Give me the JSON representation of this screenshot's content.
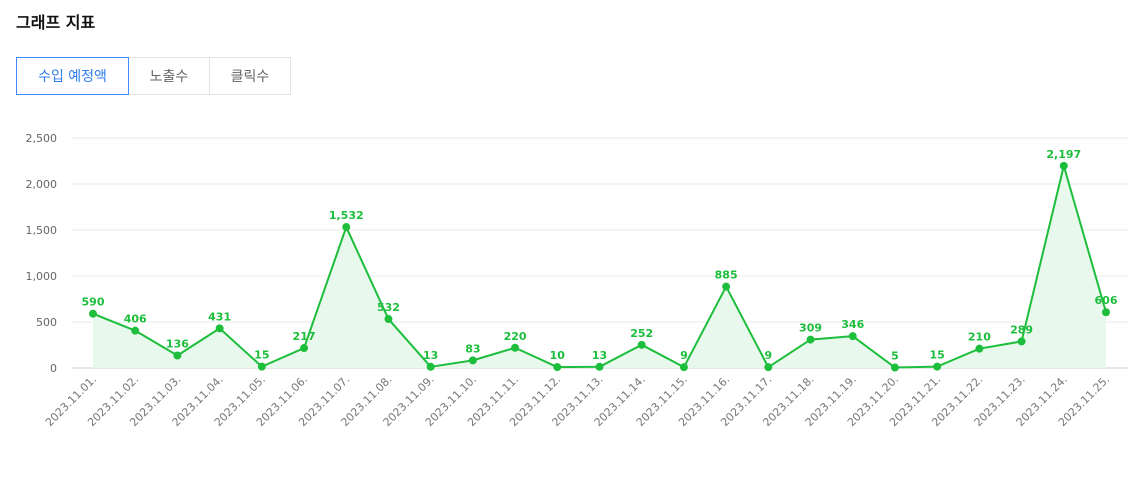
{
  "header": {
    "title": "그래프 지표"
  },
  "tabs": [
    {
      "label": "수입 예정액",
      "active": true
    },
    {
      "label": "노출수",
      "active": false
    },
    {
      "label": "클릭수",
      "active": false
    }
  ],
  "colors": {
    "line": "#1cbe3c",
    "fill": "#e9f8ec",
    "accent": "#3d8bfd",
    "grid": "#e8e8e8"
  },
  "chart_data": {
    "type": "line",
    "x": [
      "2023.11.01.",
      "2023.11.02.",
      "2023.11.03.",
      "2023.11.04.",
      "2023.11.05.",
      "2023.11.06.",
      "2023.11.07.",
      "2023.11.08.",
      "2023.11.09.",
      "2023.11.10.",
      "2023.11.11.",
      "2023.11.12.",
      "2023.11.13.",
      "2023.11.14.",
      "2023.11.15.",
      "2023.11.16.",
      "2023.11.17.",
      "2023.11.18.",
      "2023.11.19.",
      "2023.11.20.",
      "2023.11.21.",
      "2023.11.22.",
      "2023.11.23.",
      "2023.11.24.",
      "2023.11.25."
    ],
    "series": [
      {
        "values": [
          590,
          406,
          136,
          431,
          15,
          217,
          1532,
          532,
          13,
          83,
          220,
          10,
          13,
          252,
          9,
          885,
          9,
          309,
          346,
          5,
          15,
          210,
          289,
          2197,
          606
        ]
      }
    ],
    "data_labels": [
      "590",
      "406",
      "136",
      "431",
      "15",
      "217",
      "1,532",
      "532",
      "13",
      "83",
      "220",
      "10",
      "13",
      "252",
      "9",
      "885",
      "9",
      "309",
      "346",
      "5",
      "15",
      "210",
      "289",
      "2,197",
      "606"
    ],
    "yticks": [
      "0",
      "500",
      "1,000",
      "1,500",
      "2,000",
      "2,500"
    ],
    "ylim": [
      0,
      2500
    ],
    "grid": true,
    "area_fill": true
  }
}
